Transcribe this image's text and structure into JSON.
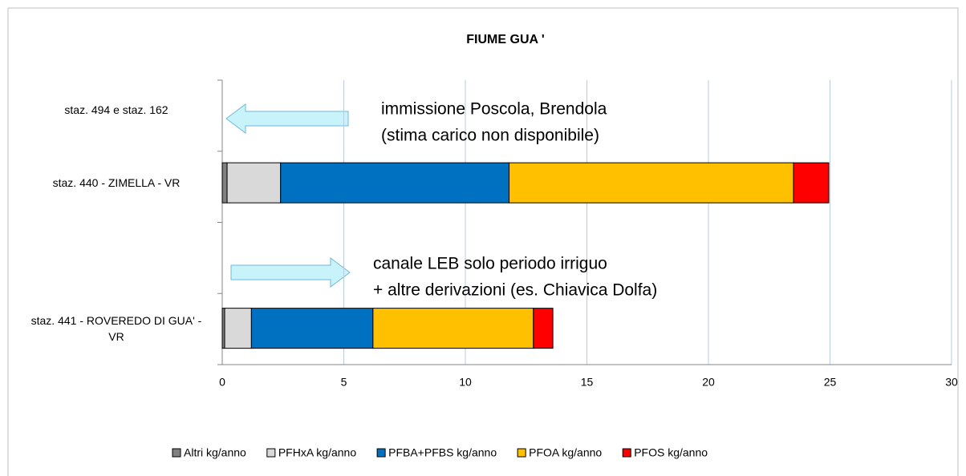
{
  "chart_data": {
    "type": "stacked_barh",
    "title": "FIUME GUA '",
    "categories": [
      "staz. 494 e staz. 162",
      "staz. 440 - ZIMELLA - VR",
      null,
      "staz. 441 - ROVEREDO DI GUA' - VR"
    ],
    "series": [
      {
        "name": "Altri kg/anno",
        "color": "#808080",
        "values": [
          null,
          0.2,
          null,
          0.1
        ]
      },
      {
        "name": "PFHxA kg/anno",
        "color": "#d9d9d9",
        "values": [
          null,
          2.2,
          null,
          1.1
        ]
      },
      {
        "name": "PFBA+PFBS kg/anno",
        "color": "#0070c0",
        "values": [
          null,
          9.4,
          null,
          5.0
        ]
      },
      {
        "name": "PFOA kg/anno",
        "color": "#ffc000",
        "values": [
          null,
          11.7,
          null,
          6.6
        ]
      },
      {
        "name": "PFOS kg/anno",
        "color": "#ff0000",
        "values": [
          null,
          1.45,
          null,
          0.8
        ]
      }
    ],
    "xlim": [
      0,
      30
    ],
    "xticks": [
      0,
      5,
      10,
      15,
      20,
      25,
      30
    ],
    "grid": true,
    "legend": "bottom",
    "annotations": [
      {
        "lines": [
          "immissione Poscola, Brendola",
          "(stima carico non disponibile)"
        ]
      },
      {
        "lines": [
          "canale LEB solo periodo irriguo",
          "+ altre derivazioni (es. Chiavica Dolfa)"
        ]
      }
    ]
  }
}
